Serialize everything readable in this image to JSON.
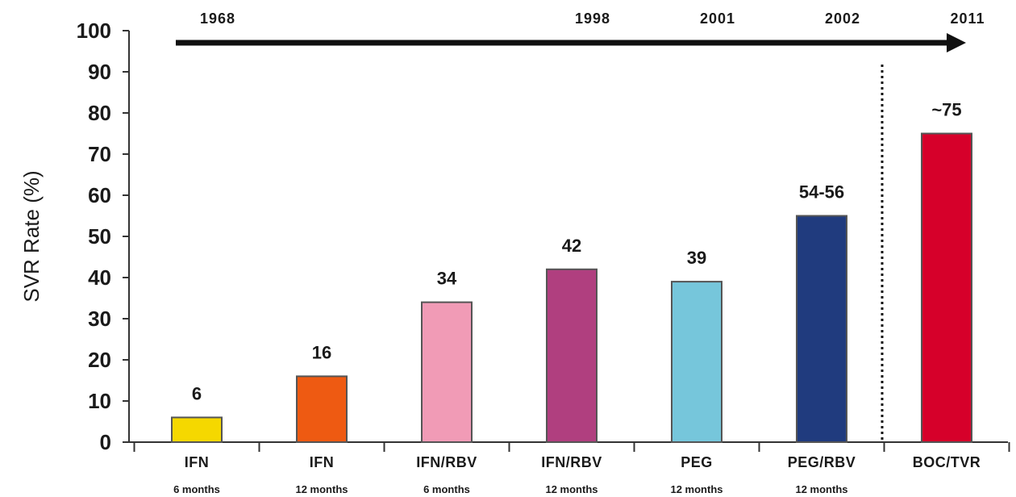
{
  "chart_data": {
    "type": "bar",
    "ylabel": "SVR Rate (%)",
    "ylim": [
      0,
      100
    ],
    "yticks": [
      0,
      10,
      20,
      30,
      40,
      50,
      60,
      70,
      80,
      90,
      100
    ],
    "grid": false,
    "legend": "none",
    "categories": [
      "IFN",
      "IFN",
      "IFN/RBV",
      "IFN/RBV",
      "PEG",
      "PEG/RBV",
      "BOC/TVR"
    ],
    "sublabels": [
      "6 months",
      "12 months",
      "6 months",
      "12 months",
      "12 months",
      "12 months",
      ""
    ],
    "values": [
      6,
      16,
      34,
      42,
      39,
      55,
      75
    ],
    "data_labels": [
      "6",
      "16",
      "34",
      "42",
      "39",
      "54-56",
      "~75"
    ],
    "colors": [
      "#f5d800",
      "#ee5a12",
      "#f19bb6",
      "#b03f7f",
      "#76c6db",
      "#203b7e",
      "#d6002a"
    ],
    "timeline": {
      "years": [
        "1968",
        "1998",
        "2001",
        "2002",
        "2011"
      ],
      "year_anchor_category": [
        0,
        3,
        4,
        5,
        6
      ]
    }
  }
}
